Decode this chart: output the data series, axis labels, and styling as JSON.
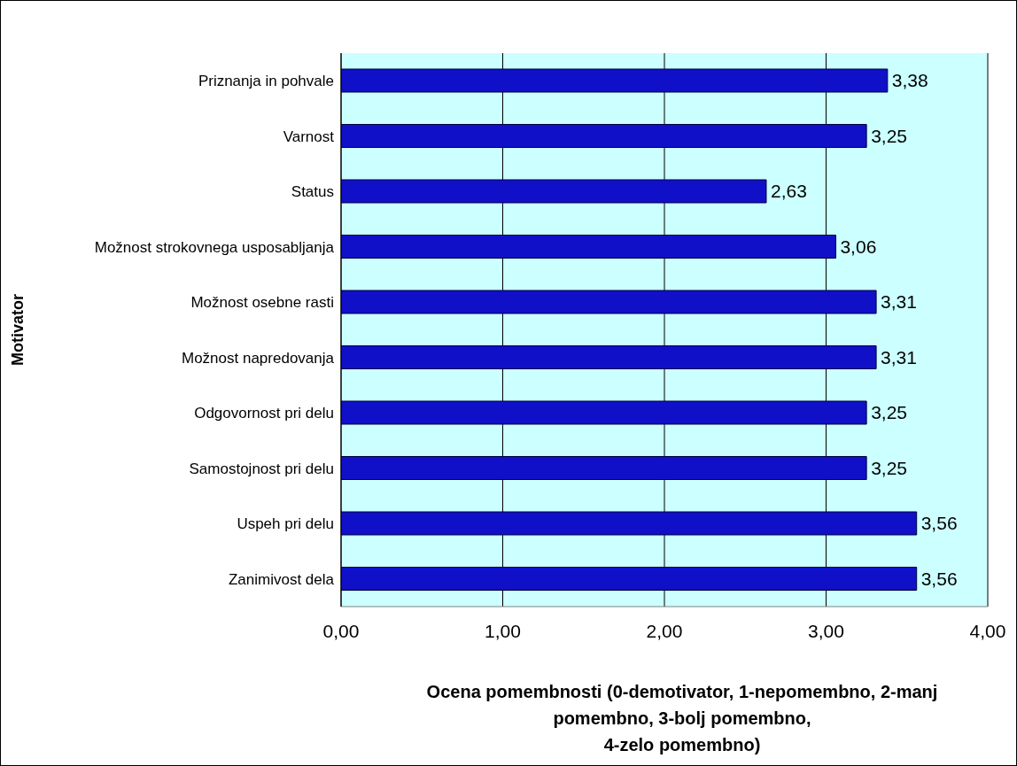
{
  "chart_data": {
    "type": "bar",
    "orientation": "horizontal",
    "xlabel": "Ocena pomembnosti (0-demotivator, 1-nepomembno, 2-manj\npomembno, 3-bolj pomembno,\n4-zelo pomembno)",
    "ylabel": "Motivator",
    "categories": [
      "Priznanja in pohvale",
      "Varnost",
      "Status",
      "Možnost strokovnega usposabljanja",
      "Možnost osebne rasti",
      "Možnost napredovanja",
      "Odgovornost pri delu",
      "Samostojnost pri delu",
      "Uspeh pri delu",
      "Zanimivost dela"
    ],
    "values": [
      3.38,
      3.25,
      2.63,
      3.06,
      3.31,
      3.31,
      3.25,
      3.25,
      3.56,
      3.56
    ],
    "value_labels": [
      "3,38",
      "3,25",
      "2,63",
      "3,06",
      "3,31",
      "3,31",
      "3,25",
      "3,25",
      "3,56",
      "3,56"
    ],
    "color": "#1010c8",
    "xlim": [
      0,
      4
    ],
    "xticks": [
      {
        "value": 0,
        "label": "0,00"
      },
      {
        "value": 1,
        "label": "1,00"
      },
      {
        "value": 2,
        "label": "2,00"
      },
      {
        "value": 3,
        "label": "3,00"
      },
      {
        "value": 4,
        "label": "4,00"
      }
    ],
    "grid": "x"
  }
}
